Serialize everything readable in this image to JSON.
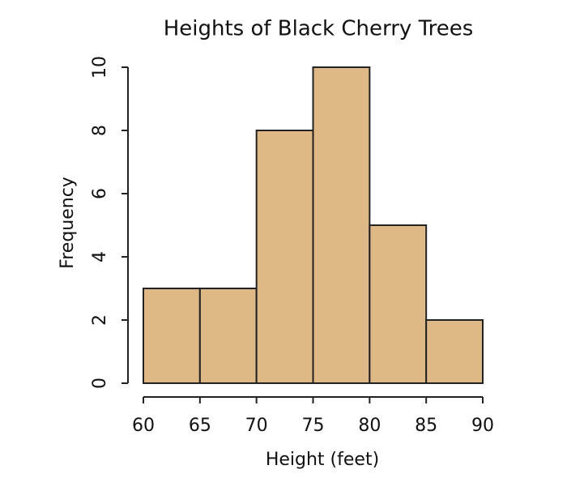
{
  "chart_data": {
    "type": "histogram",
    "title": "Heights of Black Cherry Trees",
    "x_label": "Height (feet)",
    "y_label": "Frequency",
    "bins": [
      60,
      65,
      70,
      75,
      80,
      85,
      90
    ],
    "values": [
      3,
      3,
      8,
      10,
      5,
      2
    ],
    "color": "#deb887",
    "xlim": [
      60,
      90
    ],
    "xticks": [
      60,
      65,
      70,
      75,
      80,
      85,
      90
    ],
    "ylim": [
      0,
      10
    ],
    "yticks": [
      0,
      2,
      4,
      6,
      8,
      10
    ],
    "grid": false
  }
}
